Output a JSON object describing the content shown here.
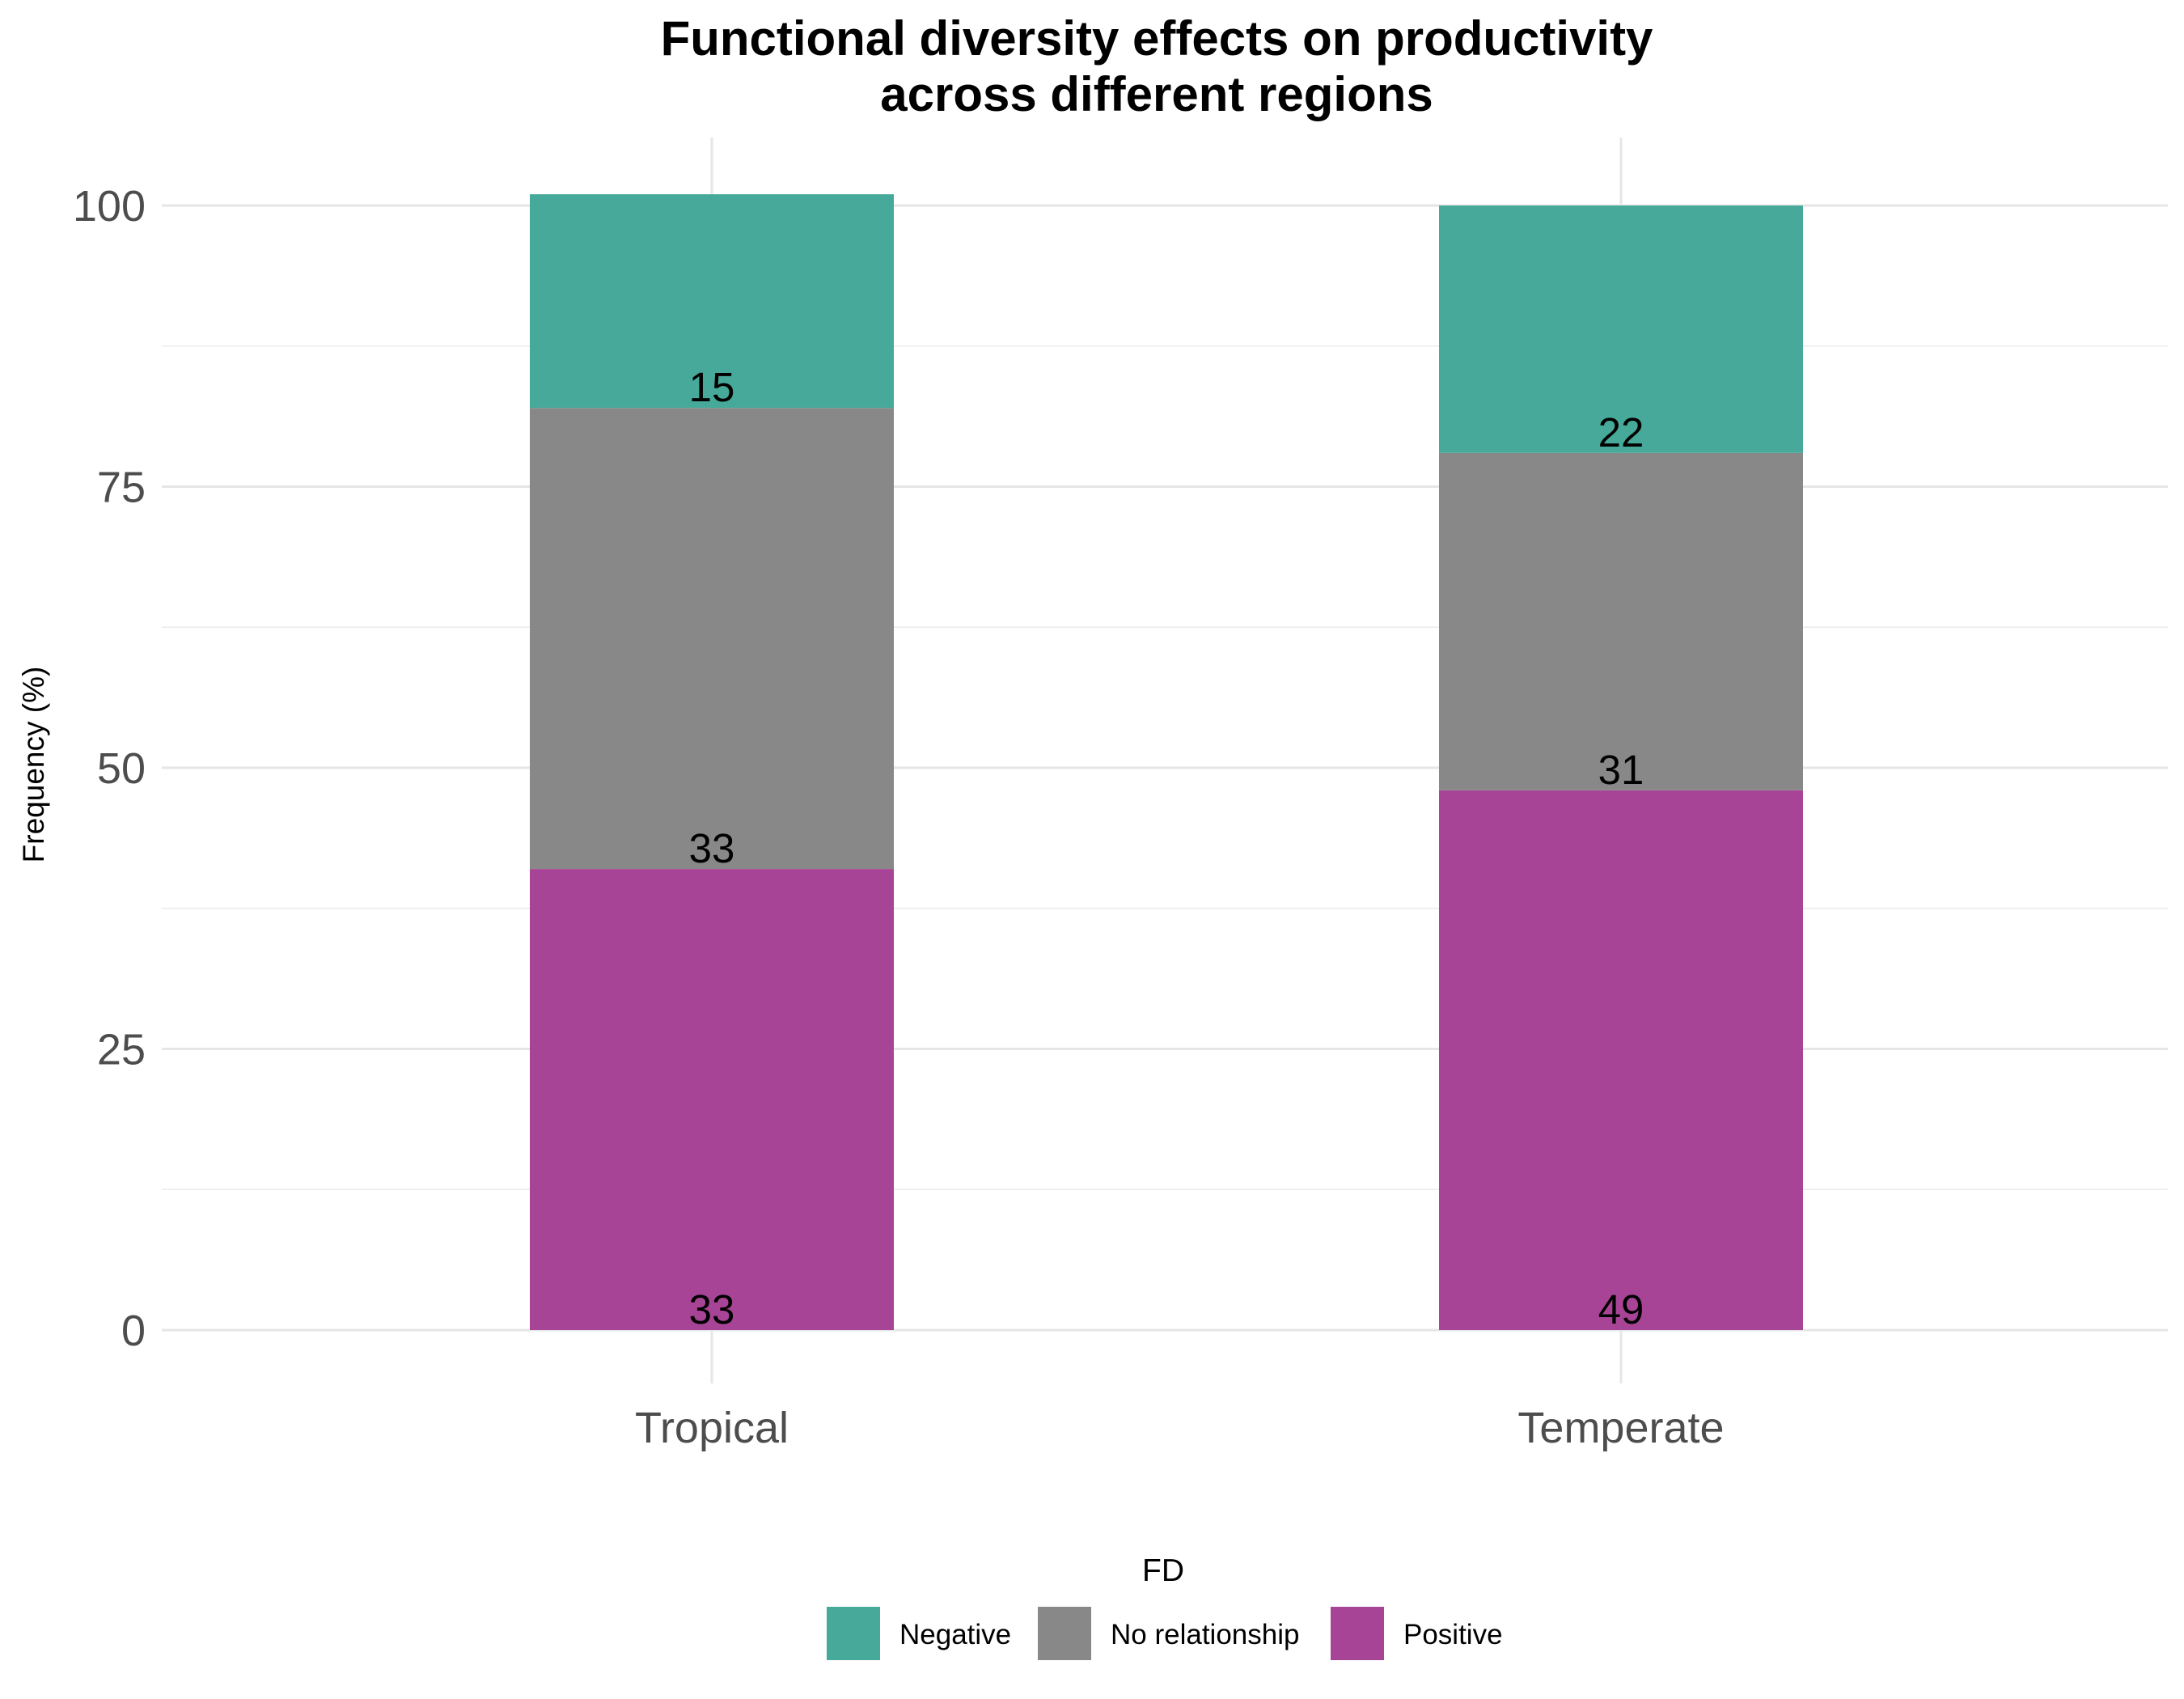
{
  "chart_data": {
    "type": "bar",
    "stacked": true,
    "title": [
      "Functional diversity effects on productivity",
      "across different regions"
    ],
    "xlabel": "",
    "ylabel": "Frequency (%)",
    "ylim": [
      0,
      105
    ],
    "yticks": [
      0,
      25,
      50,
      75,
      100
    ],
    "grid": true,
    "categories": [
      "Tropical",
      "Temperate"
    ],
    "series": [
      {
        "name": "Positive",
        "color": "#a84496",
        "values": [
          41,
          48
        ],
        "labels": [
          "33",
          "49"
        ]
      },
      {
        "name": "No relationship",
        "color": "#888888",
        "values": [
          41,
          30
        ],
        "labels": [
          "33",
          "31"
        ]
      },
      {
        "name": "Negative",
        "color": "#46a99a",
        "values": [
          19,
          22
        ],
        "labels": [
          "15",
          "22"
        ]
      }
    ],
    "legend": {
      "title": "FD",
      "position": "bottom",
      "items": [
        {
          "label": "Negative",
          "color": "#46a99a"
        },
        {
          "label": "No relationship",
          "color": "#888888"
        },
        {
          "label": "Positive",
          "color": "#a84496"
        }
      ]
    }
  }
}
